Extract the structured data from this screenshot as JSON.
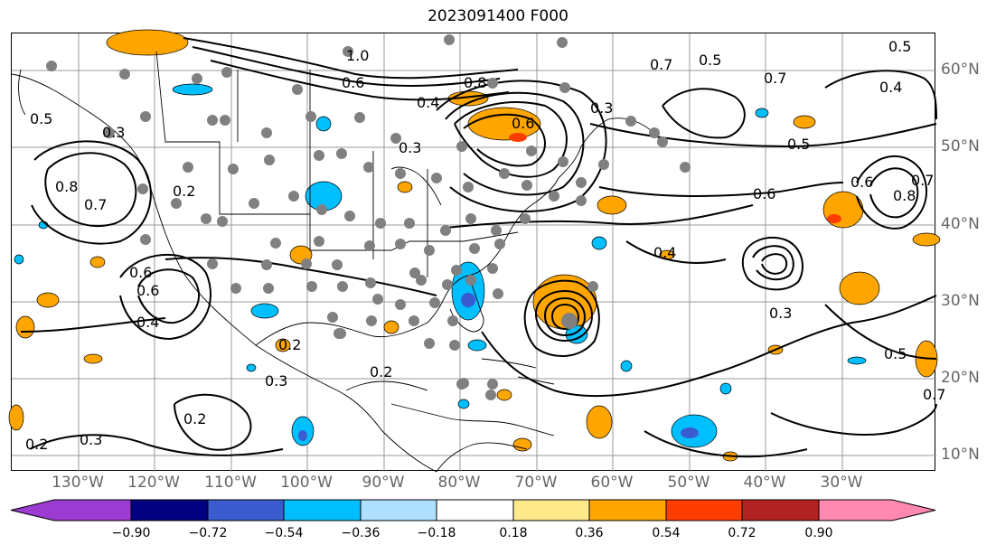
{
  "title": "2023091400 F000",
  "longitude_labels": [
    "130°W",
    "120°W",
    "110°W",
    "100°W",
    "90°W",
    "80°W",
    "70°W",
    "60°W",
    "50°W",
    "40°W",
    "30°W"
  ],
  "latitude_labels": [
    "60°N",
    "50°N",
    "40°N",
    "30°N",
    "20°N",
    "10°N"
  ],
  "colorbar": {
    "ticks": [
      "−0.90",
      "−0.72",
      "−0.54",
      "−0.36",
      "−0.18",
      "0.18",
      "0.36",
      "0.54",
      "0.72",
      "0.90"
    ],
    "colors": [
      "#9b3bd1",
      "#000080",
      "#3b5bd0",
      "#00bfff",
      "#b0e0ff",
      "#ffffff",
      "#ffe98a",
      "#ffa500",
      "#ff3c00",
      "#b22222",
      "#ff88b0"
    ]
  },
  "contour_labels": [
    "1.0",
    "0.6",
    "0.4",
    "0.3",
    "0.8",
    "0.6",
    "0.3",
    "0.5",
    "0.7",
    "0.5",
    "0.4",
    "0.7",
    "0.5",
    "0.6",
    "0.6",
    "0.8",
    "0.7",
    "0.4",
    "0.3",
    "0.5",
    "0.7",
    "0.5",
    "0.8",
    "0.7",
    "0.6",
    "0.3",
    "0.4",
    "0.2",
    "0.2",
    "0.2",
    "0.3",
    "0.2",
    "0.2",
    "0.3",
    "0.6"
  ]
}
